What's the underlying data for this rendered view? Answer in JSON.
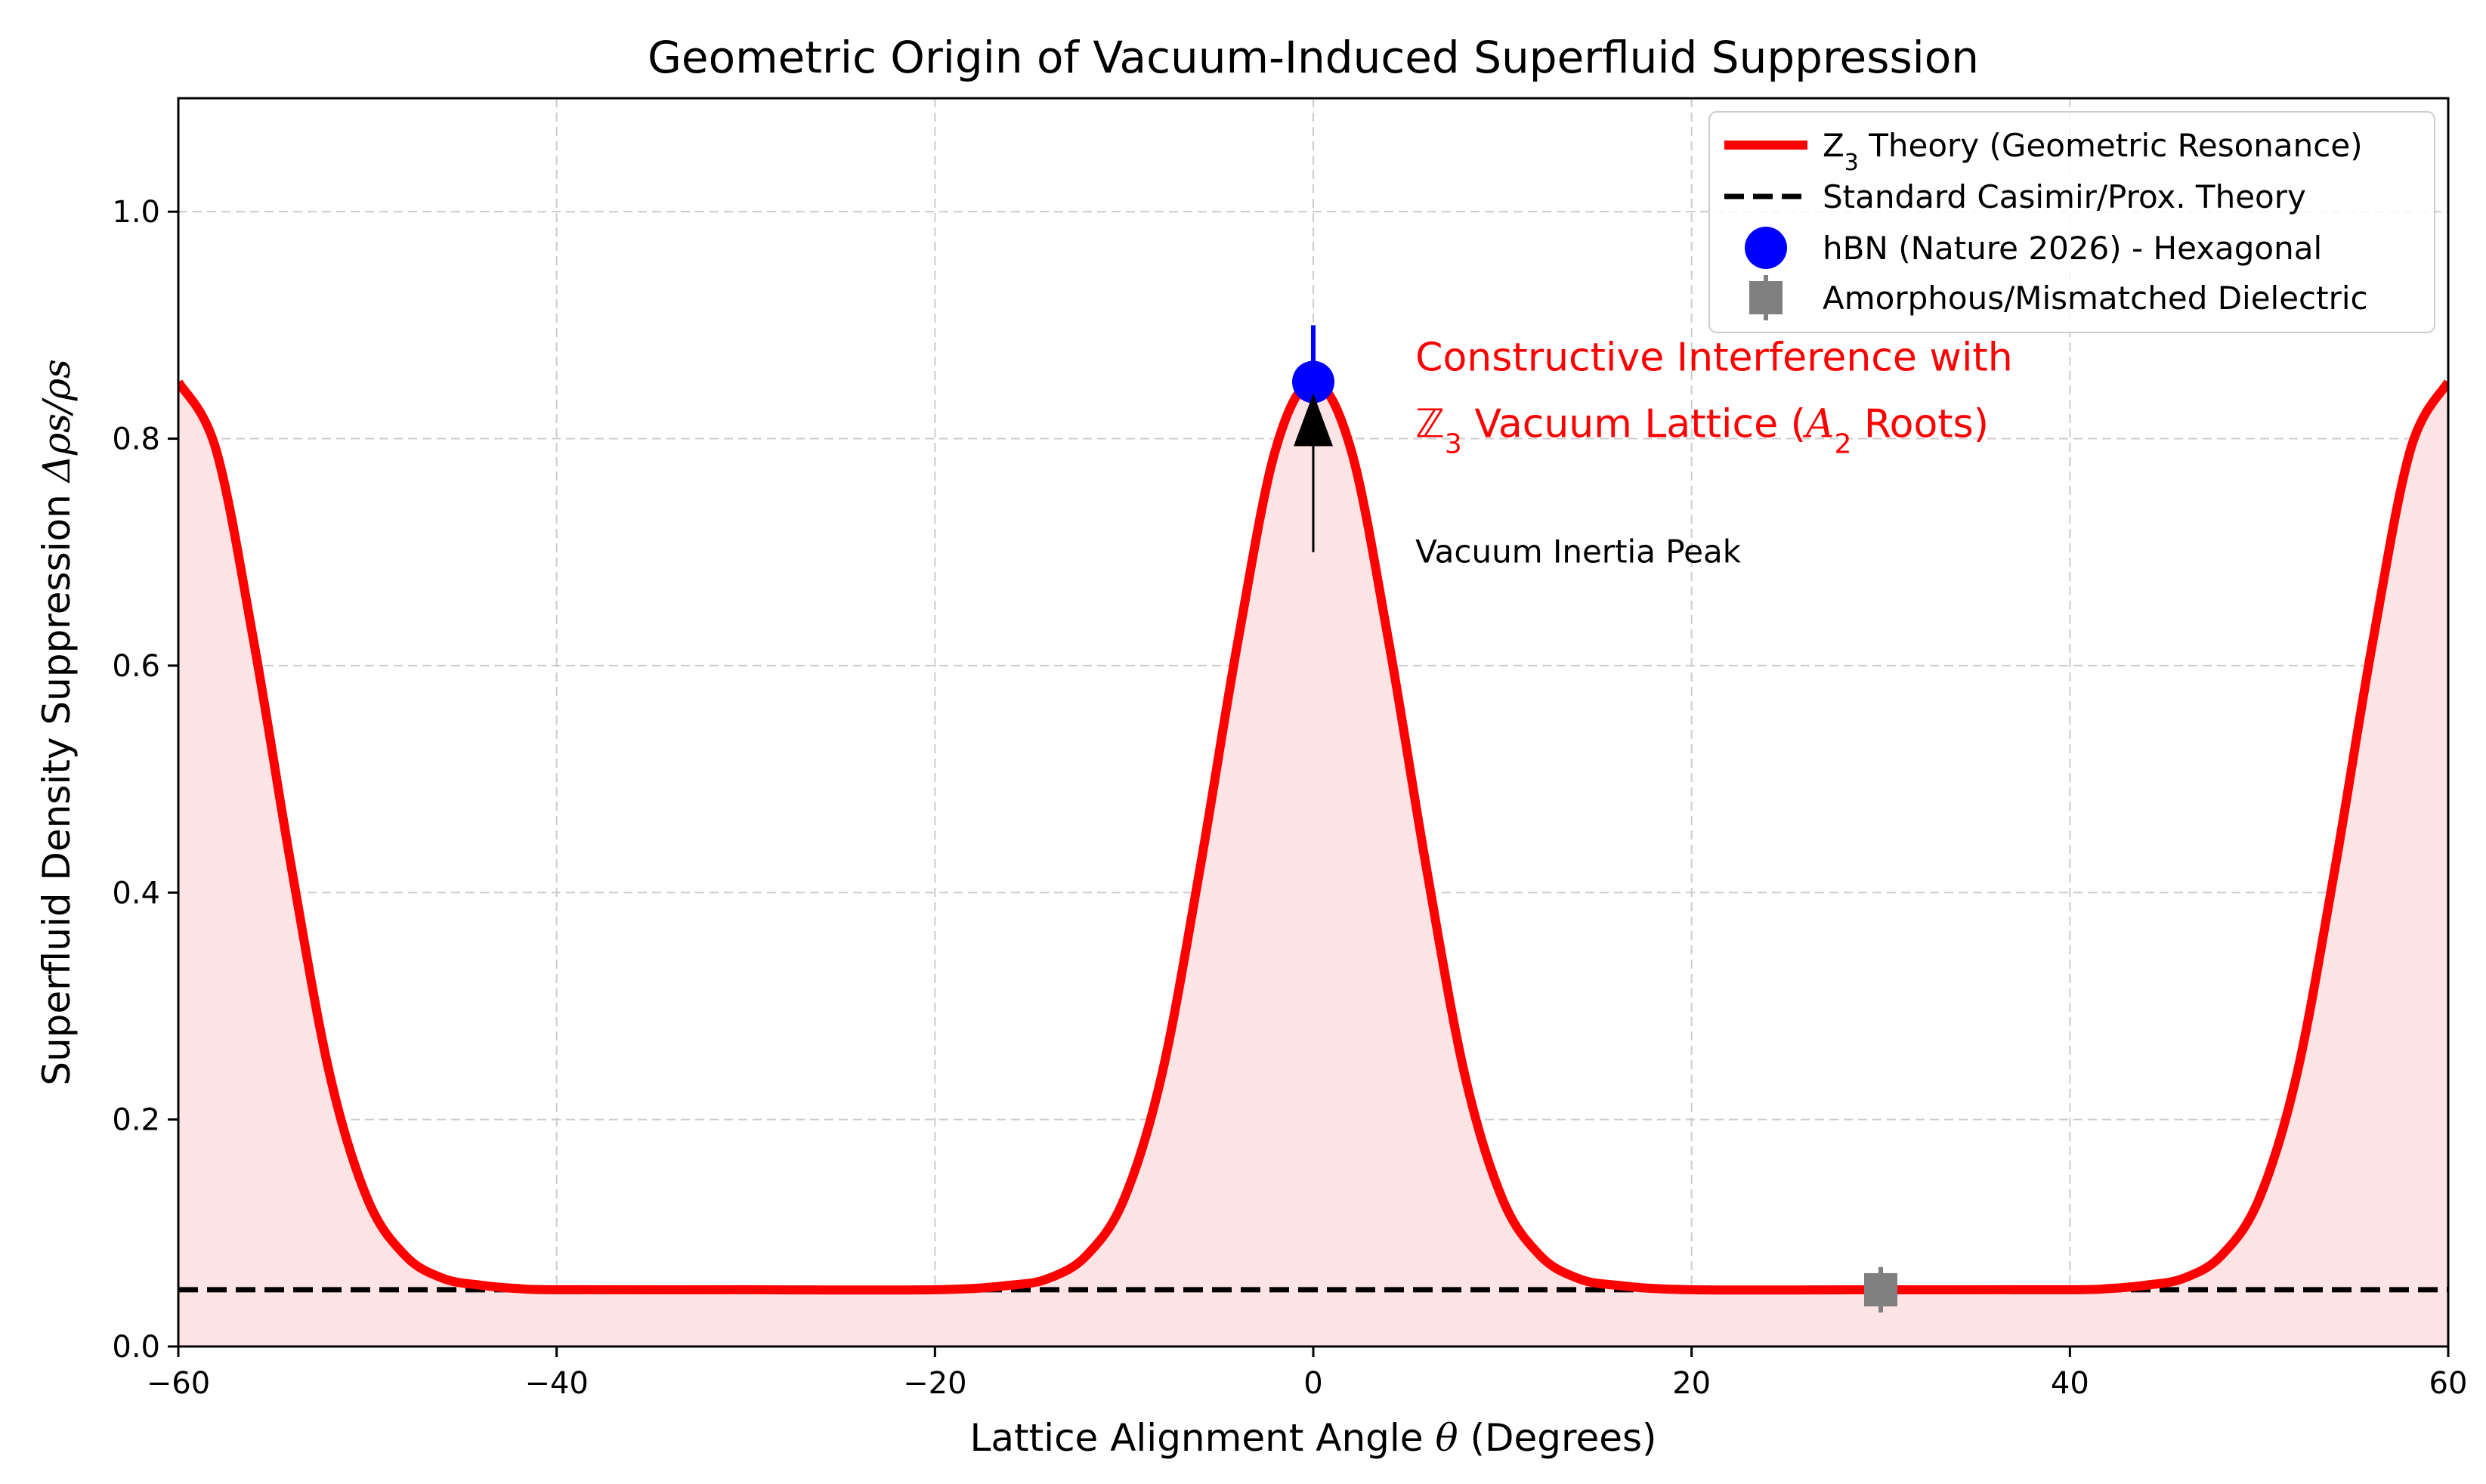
{
  "chart_data": {
    "type": "line",
    "title": "Geometric Origin of Vacuum-Induced Superfluid Suppression",
    "xlabel": "Lattice Alignment Angle θ (Degrees)",
    "ylabel": "Superfluid Density Suppression Δρs/ρs",
    "xlim": [
      -60,
      60
    ],
    "ylim": [
      0,
      1.1
    ],
    "x_ticks": [
      -60,
      -40,
      -20,
      0,
      20,
      40,
      60
    ],
    "x_tick_labels": [
      "−60",
      "−40",
      "−20",
      "0",
      "20",
      "40",
      "60"
    ],
    "y_ticks": [
      0.0,
      0.2,
      0.4,
      0.6,
      0.8,
      1.0
    ],
    "y_tick_labels": [
      "0.0",
      "0.2",
      "0.4",
      "0.6",
      "0.8",
      "1.0"
    ],
    "grid": true,
    "legend_position": "top-right",
    "series": [
      {
        "name": "Z3 Theory (Geometric Resonance)",
        "kind": "line",
        "color": "#ff0000",
        "fill_color": "#ffe4e6",
        "x": [
          -60,
          -58,
          -56,
          -54,
          -52,
          -50,
          -48,
          -46,
          -44,
          -42,
          -40,
          -30,
          -20,
          -16,
          -14,
          -12,
          -10,
          -8,
          -6,
          -4,
          -2,
          0,
          2,
          4,
          6,
          8,
          10,
          12,
          14,
          16,
          20,
          30,
          40,
          42,
          44,
          46,
          48,
          50,
          52,
          54,
          56,
          58,
          60
        ],
        "y": [
          0.85,
          0.79,
          0.62,
          0.42,
          0.24,
          0.13,
          0.08,
          0.06,
          0.054,
          0.051,
          0.05,
          0.05,
          0.05,
          0.054,
          0.06,
          0.08,
          0.13,
          0.24,
          0.42,
          0.62,
          0.79,
          0.85,
          0.79,
          0.62,
          0.42,
          0.24,
          0.13,
          0.08,
          0.06,
          0.054,
          0.05,
          0.05,
          0.05,
          0.051,
          0.054,
          0.06,
          0.08,
          0.13,
          0.24,
          0.42,
          0.62,
          0.79,
          0.85
        ]
      },
      {
        "name": "Standard Casimir/Prox. Theory",
        "kind": "dashed-line",
        "color": "#000000",
        "x": [
          -60,
          60
        ],
        "y": [
          0.05,
          0.05
        ]
      },
      {
        "name": "hBN (Nature 2026) - Hexagonal",
        "kind": "point",
        "color": "#0000ff",
        "x": [
          0
        ],
        "y": [
          0.85
        ],
        "yerr": [
          0.05
        ]
      },
      {
        "name": "Amorphous/Mismatched Dielectric",
        "kind": "point",
        "color": "#808080",
        "x": [
          30
        ],
        "y": [
          0.05
        ],
        "yerr": [
          0.02
        ]
      }
    ],
    "annotations": [
      {
        "id": "peak-label",
        "text": "Vacuum Inertia Peak",
        "x": 5,
        "y": 0.7,
        "color": "#000000",
        "arrow_from": [
          0,
          0.7
        ],
        "arrow_to": [
          0,
          0.84
        ]
      },
      {
        "id": "interference-label",
        "line1": "Constructive Interference with",
        "line2_prefix": "ℤ",
        "line2_sub": "3",
        "line2_middle": " Vacuum Lattice (",
        "line2_italic": "A",
        "line2_sub2": "2",
        "line2_suffix": " Roots)",
        "x": 5,
        "y": 0.86,
        "color": "#ff0000"
      }
    ]
  }
}
